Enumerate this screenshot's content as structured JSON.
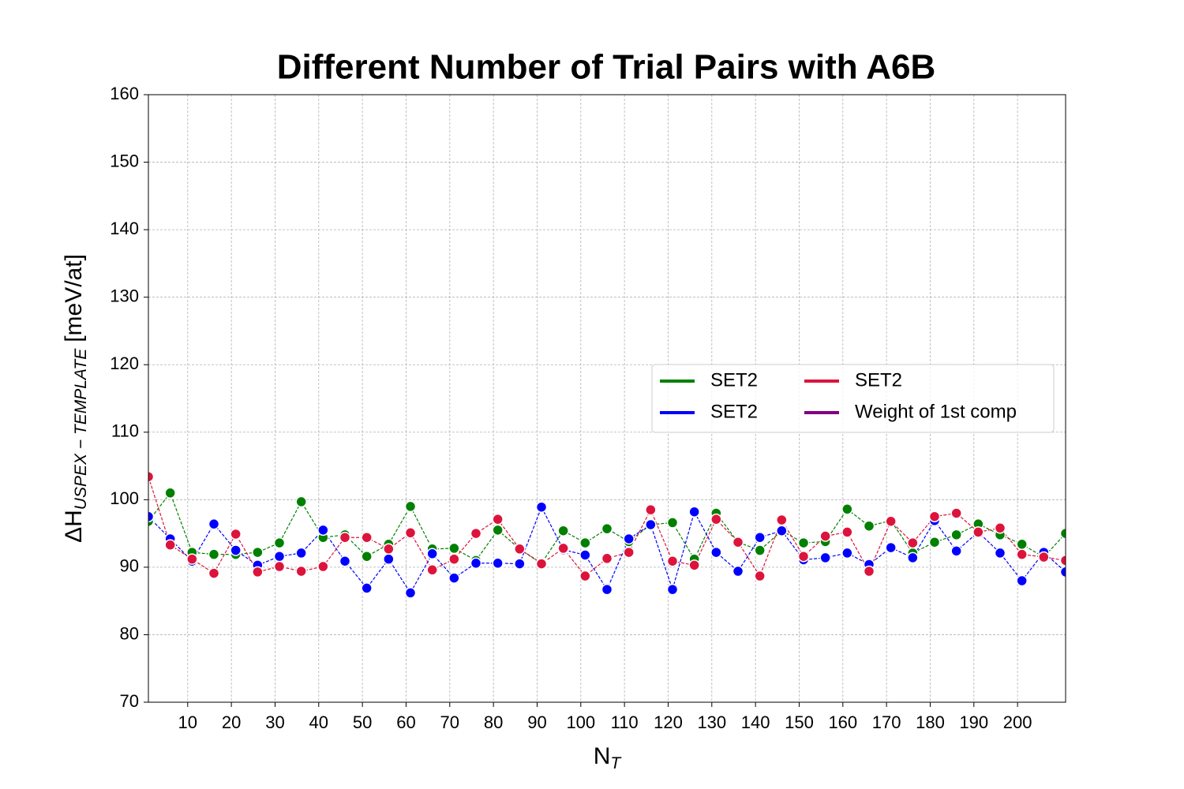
{
  "chart_data": {
    "type": "line",
    "title": "Different Number of Trial Pairs with A6B",
    "xlabel": {
      "main": "N",
      "sub": "T"
    },
    "ylabel": {
      "main": "ΔH",
      "sub": "USPEX − TEMPLATE",
      "unit": "[meV/at]"
    },
    "x": [
      1,
      6,
      11,
      16,
      21,
      26,
      31,
      36,
      41,
      46,
      51,
      56,
      61,
      66,
      71,
      76,
      81,
      86,
      91,
      96,
      101,
      106,
      111,
      116,
      121,
      126,
      131,
      136,
      141,
      146,
      151,
      156,
      161,
      166,
      171,
      176,
      181,
      186,
      191,
      196,
      201,
      206,
      211
    ],
    "series": [
      {
        "name": "SET2",
        "color": "#008000",
        "values": [
          96.8,
          101.0,
          92.2,
          91.9,
          91.9,
          92.2,
          93.6,
          99.7,
          94.4,
          94.8,
          91.6,
          93.4,
          99.0,
          92.7,
          92.8,
          91.0,
          95.5,
          92.7,
          90.6,
          95.4,
          93.6,
          95.7,
          93.8,
          96.3,
          96.6,
          91.2,
          98.0,
          93.7,
          92.5,
          95.4,
          93.6,
          93.8,
          98.6,
          96.1,
          96.9,
          92.1,
          93.7,
          94.8,
          96.4,
          94.8,
          93.4,
          91.5,
          95.0
        ]
      },
      {
        "name": "SET2",
        "color": "#0000ff",
        "values": [
          97.5,
          94.2,
          90.9,
          96.4,
          92.5,
          90.3,
          91.6,
          92.1,
          95.5,
          90.9,
          86.9,
          91.2,
          86.2,
          92.0,
          88.4,
          90.6,
          90.6,
          90.5,
          98.9,
          92.6,
          91.8,
          86.7,
          94.2,
          96.3,
          86.7,
          98.2,
          92.2,
          89.4,
          94.4,
          95.4,
          91.1,
          91.4,
          92.1,
          90.4,
          92.9,
          91.4,
          96.9,
          92.4,
          95.2,
          92.1,
          88.0,
          92.2,
          89.3
        ]
      },
      {
        "name": "SET2",
        "color": "#dc143c",
        "values": [
          103.4,
          93.3,
          91.2,
          89.1,
          94.9,
          89.3,
          90.1,
          89.4,
          90.1,
          94.4,
          94.4,
          92.7,
          95.1,
          89.6,
          91.2,
          95.0,
          97.1,
          92.7,
          90.5,
          92.8,
          88.7,
          91.3,
          92.2,
          98.5,
          90.9,
          90.3,
          97.1,
          93.7,
          88.7,
          97.0,
          91.6,
          94.6,
          95.2,
          89.4,
          96.8,
          93.6,
          97.5,
          98.0,
          95.2,
          95.8,
          91.9,
          91.5,
          91.0
        ]
      },
      {
        "name": "Weight of 1st comp",
        "color": "#800080",
        "values": [
          null,
          null,
          null,
          null,
          null,
          null,
          null,
          null,
          null,
          null,
          null,
          null,
          null,
          null,
          null,
          null,
          null,
          null,
          null,
          null,
          null,
          null,
          null,
          null,
          null,
          null,
          null,
          null,
          null,
          null,
          null,
          null,
          null,
          null,
          null,
          null,
          null,
          null,
          null,
          null,
          null,
          null,
          null
        ]
      }
    ],
    "xlim": [
      1,
      211
    ],
    "ylim": [
      70,
      160
    ],
    "xticks": [
      10,
      20,
      30,
      40,
      50,
      60,
      70,
      80,
      90,
      100,
      110,
      120,
      130,
      140,
      150,
      160,
      170,
      180,
      190,
      200
    ],
    "yticks": [
      70,
      80,
      90,
      100,
      110,
      120,
      130,
      140,
      150,
      160
    ],
    "grid": true,
    "legend": "center right"
  }
}
